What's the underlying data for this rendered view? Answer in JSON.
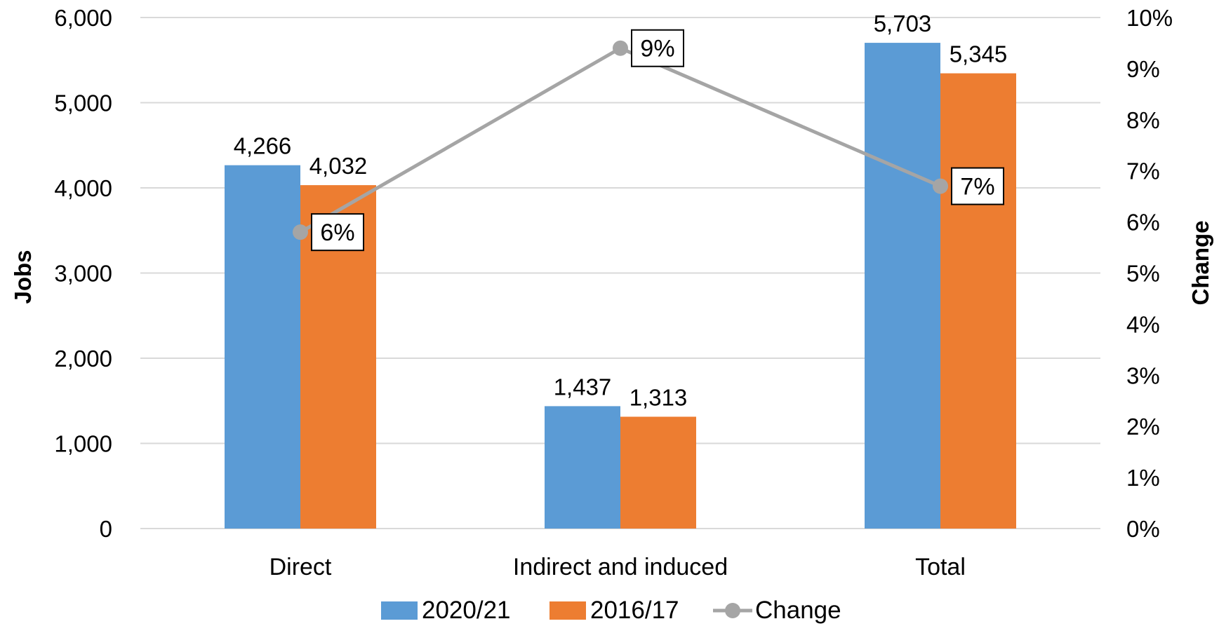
{
  "chart_data": {
    "type": "bar",
    "categories": [
      "Direct",
      "Indirect and induced",
      "Total"
    ],
    "series": [
      {
        "name": "2020/21",
        "values": [
          4266,
          1437,
          5703
        ],
        "labels": [
          "4,266",
          "1,437",
          "5,703"
        ],
        "color": "#5B9BD5"
      },
      {
        "name": "2016/17",
        "values": [
          4032,
          1313,
          5345
        ],
        "labels": [
          "4,032",
          "1,313",
          "5,345"
        ],
        "color": "#ED7D31"
      }
    ],
    "line_series": {
      "name": "Change",
      "values": [
        5.8,
        9.4,
        6.7
      ],
      "labels": [
        "6%",
        "9%",
        "7%"
      ],
      "color": "#A5A5A5",
      "axis": "secondary"
    },
    "ylabel": "Jobs",
    "y2label": "Change",
    "ylim": [
      0,
      6000
    ],
    "y2lim": [
      0,
      10
    ],
    "y_ticks": [
      "0",
      "1,000",
      "2,000",
      "3,000",
      "4,000",
      "5,000",
      "6,000"
    ],
    "y2_ticks": [
      "0%",
      "1%",
      "2%",
      "3%",
      "4%",
      "5%",
      "6%",
      "7%",
      "8%",
      "9%",
      "10%"
    ],
    "grid": true,
    "legend_position": "bottom"
  }
}
